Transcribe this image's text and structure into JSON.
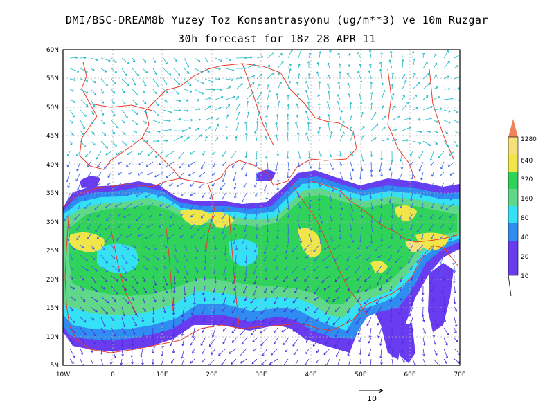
{
  "title": "DMI/BSC-DREAM8b Yuzey Toz Konsantrasyonu (ug/m**3) ve 10m Ruzgar",
  "subtitle": "30h forecast for 18z 28 APR 11",
  "map": {
    "lon_range": [
      -10,
      70
    ],
    "lat_range": [
      5,
      60
    ],
    "lat_labels": [
      "60N",
      "55N",
      "50N",
      "45N",
      "40N",
      "35N",
      "30N",
      "25N",
      "20N",
      "15N",
      "10N",
      "5N"
    ],
    "lon_labels": [
      "10W",
      "0",
      "10E",
      "20E",
      "30E",
      "40E",
      "50E",
      "60E",
      "70E"
    ]
  },
  "colorbar": {
    "levels": [
      "1280",
      "640",
      "320",
      "160",
      "80",
      "40",
      "20",
      "10"
    ],
    "colors": {
      "over": "#f0825a",
      "640_1280": "#f5e07a",
      "320_640": "#f0e64a",
      "160_320": "#2fd35a",
      "80_160": "#5fd88a",
      "40_80": "#35e1f5",
      "20_40": "#2f8cf0",
      "10_20": "#6a3cf0"
    }
  },
  "vector_legend": {
    "label": "10"
  },
  "colors": {
    "coast": "#e83a2a",
    "grid": "#b0b0b0",
    "wind_north": "#1fb8c8",
    "wind_mid": "#3a66e8",
    "wind_south": "#4a2ee0"
  }
}
